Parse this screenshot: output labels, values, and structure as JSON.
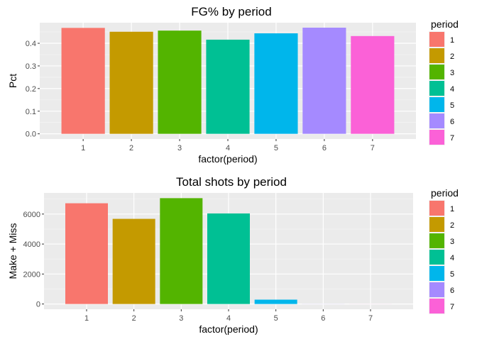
{
  "chart_data": [
    {
      "type": "bar",
      "title": "FG% by period",
      "xlabel": "factor(period)",
      "ylabel": "Pct",
      "categories": [
        "1",
        "2",
        "3",
        "4",
        "5",
        "6",
        "7"
      ],
      "values": [
        0.468,
        0.451,
        0.456,
        0.416,
        0.444,
        0.469,
        0.432
      ],
      "ylim": [
        -0.023,
        0.491
      ],
      "yticks": [
        0.0,
        0.1,
        0.2,
        0.3,
        0.4
      ],
      "ytick_labels": [
        "0.0",
        "0.1",
        "0.2",
        "0.3",
        "0.4"
      ],
      "grid": true,
      "legend": {
        "title": "period",
        "placement": "right",
        "entries": [
          "1",
          "2",
          "3",
          "4",
          "5",
          "6",
          "7"
        ]
      },
      "colors": [
        "#F8766D",
        "#C49A00",
        "#53B400",
        "#00C094",
        "#00B6EB",
        "#A58AFF",
        "#FB61D7"
      ]
    },
    {
      "type": "bar",
      "title": "Total shots by period",
      "xlabel": "factor(period)",
      "ylabel": "Make + Miss",
      "categories": [
        "1",
        "2",
        "3",
        "4",
        "5",
        "6",
        "7"
      ],
      "values": [
        6720,
        5680,
        7060,
        6040,
        290,
        5,
        3
      ],
      "ylim": [
        -350,
        7410
      ],
      "yticks": [
        0,
        2000,
        4000,
        6000
      ],
      "ytick_labels": [
        "0",
        "2000",
        "4000",
        "6000"
      ],
      "grid": true,
      "legend": {
        "title": "period",
        "placement": "right",
        "entries": [
          "1",
          "2",
          "3",
          "4",
          "5",
          "6",
          "7"
        ]
      },
      "colors": [
        "#F8766D",
        "#C49A00",
        "#53B400",
        "#00C094",
        "#00B6EB",
        "#A58AFF",
        "#FB61D7"
      ]
    }
  ]
}
